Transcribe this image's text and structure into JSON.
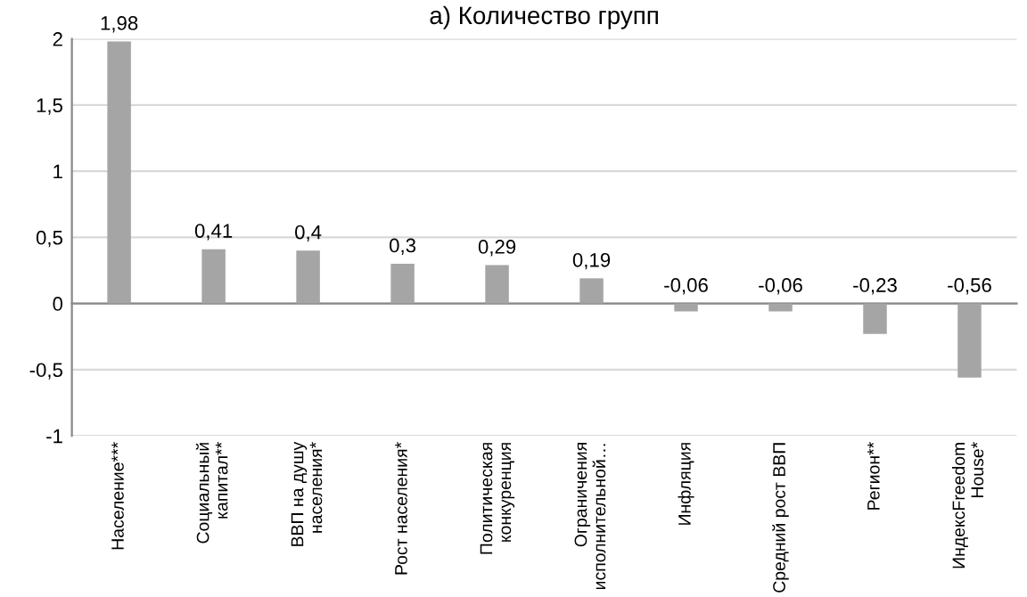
{
  "chart_data": {
    "type": "bar",
    "title": "а) Количество групп",
    "categories": [
      "Население***",
      "Социальный\nкапитал**",
      "ВВП на душу\nнаселения*",
      "Рост населения*",
      "Политическая\nконкуренция",
      "Ограничения\nисполнительной…",
      "Инфляция",
      "Средний рост ВВП",
      "Регион**",
      "ИндексFreedom\nHouse*"
    ],
    "values": [
      1.98,
      0.41,
      0.4,
      0.3,
      0.29,
      0.19,
      -0.06,
      -0.06,
      -0.23,
      -0.56
    ],
    "value_labels": [
      "1,98",
      "0,41",
      "0,4",
      "0,3",
      "0,29",
      "0,19",
      "-0,06",
      "-0,06",
      "-0,23",
      "-0,56"
    ],
    "color": "#a5a5a5",
    "ylim": [
      -1,
      2
    ],
    "yticks": [
      -1,
      {
        "value": -0.5,
        "label": "-0,5"
      },
      0,
      {
        "value": 0.5,
        "label": "0,5"
      },
      1,
      {
        "value": 1.5,
        "label": "1,5"
      },
      2
    ],
    "grid": "y",
    "legend": false
  }
}
